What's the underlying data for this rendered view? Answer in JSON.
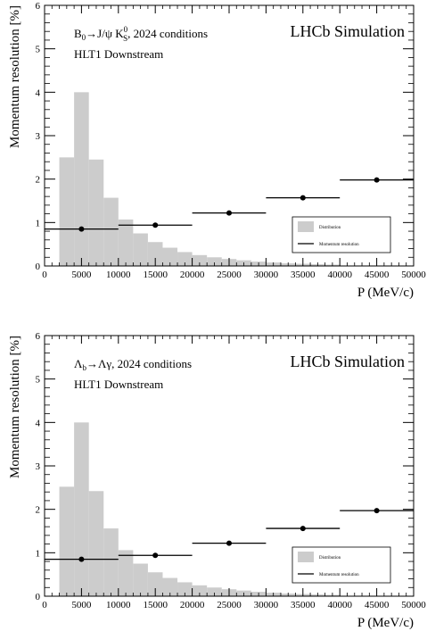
{
  "chart_data": [
    {
      "type": "bar+errorbar",
      "experiment_label": "LHCb Simulation",
      "decay_parts": {
        "pre": "B",
        "pre_sub": "0",
        "arrow": "→J/ψ K",
        "sup": "0",
        "sub": "S",
        "post": ",  2024 conditions"
      },
      "trigger": "HLT1 Downstream",
      "ylabel": "Momentum resolution [%]",
      "xlabel": "P (MeV/c)",
      "xlim": [
        0,
        50000
      ],
      "ylim": [
        0,
        6
      ],
      "xticks": [
        "0",
        "5000",
        "10000",
        "15000",
        "20000",
        "25000",
        "30000",
        "35000",
        "40000",
        "45000",
        "50000"
      ],
      "yticks": [
        "0",
        "1",
        "2",
        "3",
        "4",
        "5",
        "6"
      ],
      "legend": {
        "items": [
          "Distribution",
          "Momentum resolution"
        ],
        "placement": "lower-right"
      },
      "histogram": {
        "name": "Distribution",
        "bin_edges": [
          2000,
          4000,
          6000,
          8000,
          10000,
          12000,
          14000,
          16000,
          18000,
          20000,
          22000,
          24000,
          26000,
          28000,
          30000,
          32000,
          34000,
          36000,
          38000,
          40000
        ],
        "values": [
          2.5,
          4.0,
          2.45,
          1.57,
          1.07,
          0.75,
          0.55,
          0.42,
          0.32,
          0.25,
          0.2,
          0.16,
          0.13,
          0.1,
          0.08,
          0.06,
          0.05,
          0.04,
          0.03
        ],
        "color": "#cccccc"
      },
      "points": {
        "name": "Momentum resolution",
        "x": [
          5000,
          15000,
          25000,
          35000,
          45000
        ],
        "xerr": [
          5000,
          5000,
          5000,
          5000,
          5000
        ],
        "y": [
          0.85,
          0.94,
          1.22,
          1.57,
          1.98
        ],
        "color": "#000000"
      }
    },
    {
      "type": "bar+errorbar",
      "experiment_label": "LHCb Simulation",
      "decay_parts": {
        "pre": "Λ",
        "pre_sub": "b",
        "arrow": "→Λγ",
        "sup": "",
        "sub": "",
        "post": ",  2024 conditions"
      },
      "trigger": "HLT1 Downstream",
      "ylabel": "Momentum resolution [%]",
      "xlabel": "P (MeV/c)",
      "xlim": [
        0,
        50000
      ],
      "ylim": [
        0,
        6
      ],
      "xticks": [
        "0",
        "5000",
        "10000",
        "15000",
        "20000",
        "25000",
        "30000",
        "35000",
        "40000",
        "45000",
        "50000"
      ],
      "yticks": [
        "0",
        "1",
        "2",
        "3",
        "4",
        "5",
        "6"
      ],
      "legend": {
        "items": [
          "Distribution",
          "Momentum resolution"
        ],
        "placement": "lower-right"
      },
      "histogram": {
        "name": "Distribution",
        "bin_edges": [
          2000,
          4000,
          6000,
          8000,
          10000,
          12000,
          14000,
          16000,
          18000,
          20000,
          22000,
          24000,
          26000,
          28000,
          30000,
          32000,
          34000,
          36000,
          38000,
          40000
        ],
        "values": [
          2.52,
          4.0,
          2.42,
          1.56,
          1.06,
          0.75,
          0.55,
          0.42,
          0.32,
          0.25,
          0.2,
          0.16,
          0.13,
          0.1,
          0.08,
          0.06,
          0.05,
          0.04,
          0.03
        ],
        "color": "#cccccc"
      },
      "points": {
        "name": "Momentum resolution",
        "x": [
          5000,
          15000,
          25000,
          35000,
          45000
        ],
        "xerr": [
          5000,
          5000,
          5000,
          5000,
          5000
        ],
        "y": [
          0.85,
          0.94,
          1.22,
          1.56,
          1.97
        ],
        "color": "#000000"
      }
    }
  ]
}
